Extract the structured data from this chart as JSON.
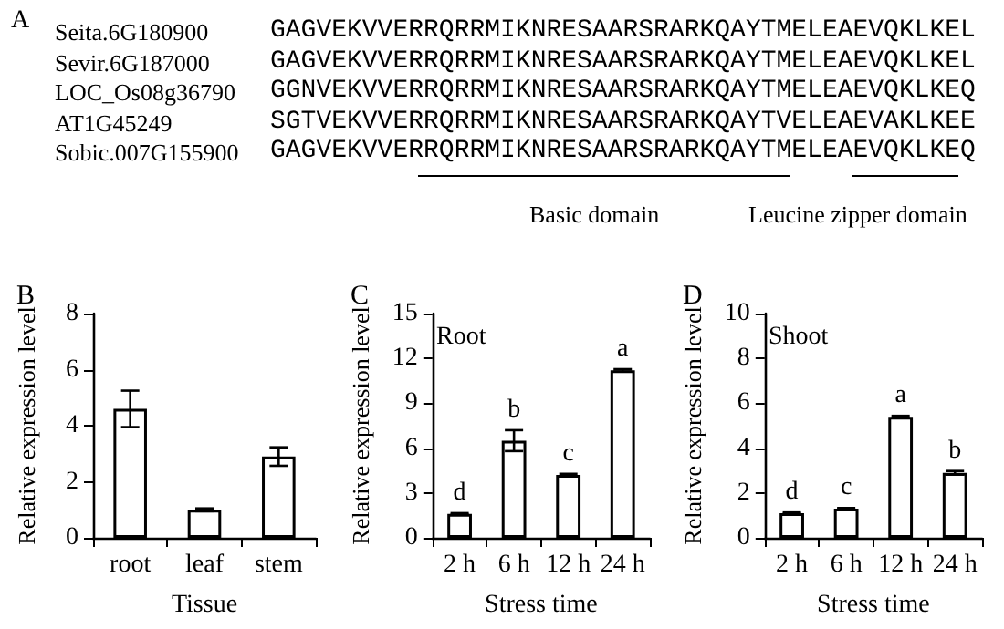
{
  "chart_data": [
    {
      "type": "other",
      "title": "A",
      "annotations": [
        "Seita.6G180900",
        "GAGVEKVVERRQRRMIKNRESAARSRARKQAYTMELEAEVQKLKEL",
        "Sevir.6G187000",
        "GAGVEKVVERRQRRMIKNRESAARSRARKQAYTMELEAEVQKLKEL",
        "LOC_Os08g36790",
        "GGNVEKVVERRQRRMIKNRESAARSRARKQAYTMELEAEVQKLKEQ",
        "AT1G45249",
        "SGTVEKVVERRQRRMIKNRESAARSRARKQAYTVELEAEVAKLKEE",
        "Sobic.007G155900",
        "GAGVEKVVERRQRRMIKNRESAARSRARKQAYTMELEAEVQKLKEQ",
        "Basic domain",
        "Leucine zipper domain"
      ]
    },
    {
      "type": "bar",
      "title": "B",
      "xlabel": "Tissue",
      "ylabel": "Relative expression level",
      "categories": [
        "root",
        "leaf",
        "stem"
      ],
      "values": [
        4.6,
        1.0,
        2.9
      ],
      "errors": [
        0.65,
        0.05,
        0.33
      ],
      "color": "#ffffff",
      "ylim": [
        0,
        8
      ],
      "yticks": [
        0,
        2,
        4,
        6,
        8
      ],
      "grid": false
    },
    {
      "type": "bar",
      "title": "C",
      "xlabel": "Stress time",
      "ylabel": "Relative expression level",
      "annotations": [
        "Root"
      ],
      "categories": [
        "2 h",
        "6 h",
        "12 h",
        "24 h"
      ],
      "values": [
        1.6,
        6.5,
        4.2,
        11.2
      ],
      "errors": [
        0.05,
        0.7,
        0.08,
        0.08
      ],
      "value_labels": [
        "d",
        "b",
        "c",
        "a"
      ],
      "color": "#ffffff",
      "ylim": [
        0,
        15
      ],
      "yticks": [
        0,
        3,
        6,
        9,
        12,
        15
      ],
      "grid": false
    },
    {
      "type": "bar",
      "title": "D",
      "xlabel": "Stress time",
      "ylabel": "Relative expression level",
      "annotations": [
        "Shoot"
      ],
      "categories": [
        "2 h",
        "6 h",
        "12 h",
        "24 h"
      ],
      "values": [
        1.1,
        1.3,
        5.4,
        2.9
      ],
      "errors": [
        0.03,
        0.03,
        0.04,
        0.08
      ],
      "value_labels": [
        "d",
        "c",
        "a",
        "b"
      ],
      "color": "#ffffff",
      "ylim": [
        0,
        10
      ],
      "yticks": [
        0,
        2,
        4,
        6,
        8,
        10
      ],
      "grid": false
    }
  ]
}
